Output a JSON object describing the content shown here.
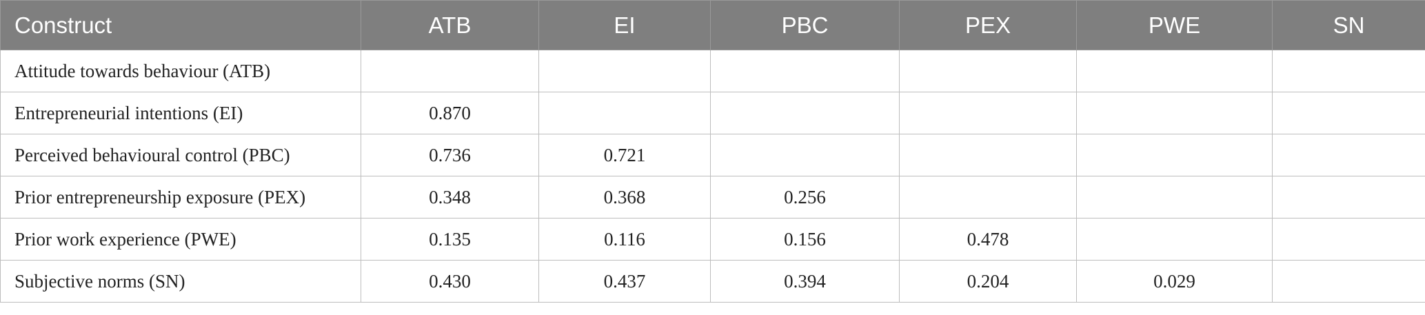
{
  "table": {
    "headers": [
      "Construct",
      "ATB",
      "EI",
      "PBC",
      "PEX",
      "PWE",
      "SN"
    ],
    "rows": [
      {
        "construct": "Attitude towards behaviour (ATB)",
        "values": [
          "",
          "",
          "",
          "",
          "",
          ""
        ]
      },
      {
        "construct": "Entrepreneurial intentions (EI)",
        "values": [
          "0.870",
          "",
          "",
          "",
          "",
          ""
        ]
      },
      {
        "construct": "Perceived behavioural control (PBC)",
        "values": [
          "0.736",
          "0.721",
          "",
          "",
          "",
          ""
        ]
      },
      {
        "construct": "Prior entrepreneurship exposure (PEX)",
        "values": [
          "0.348",
          "0.368",
          "0.256",
          "",
          "",
          ""
        ]
      },
      {
        "construct": "Prior work experience (PWE)",
        "values": [
          "0.135",
          "0.116",
          "0.156",
          "0.478",
          "",
          ""
        ]
      },
      {
        "construct": "Subjective norms (SN)",
        "values": [
          "0.430",
          "0.437",
          "0.394",
          "0.204",
          "0.029",
          ""
        ]
      }
    ]
  }
}
